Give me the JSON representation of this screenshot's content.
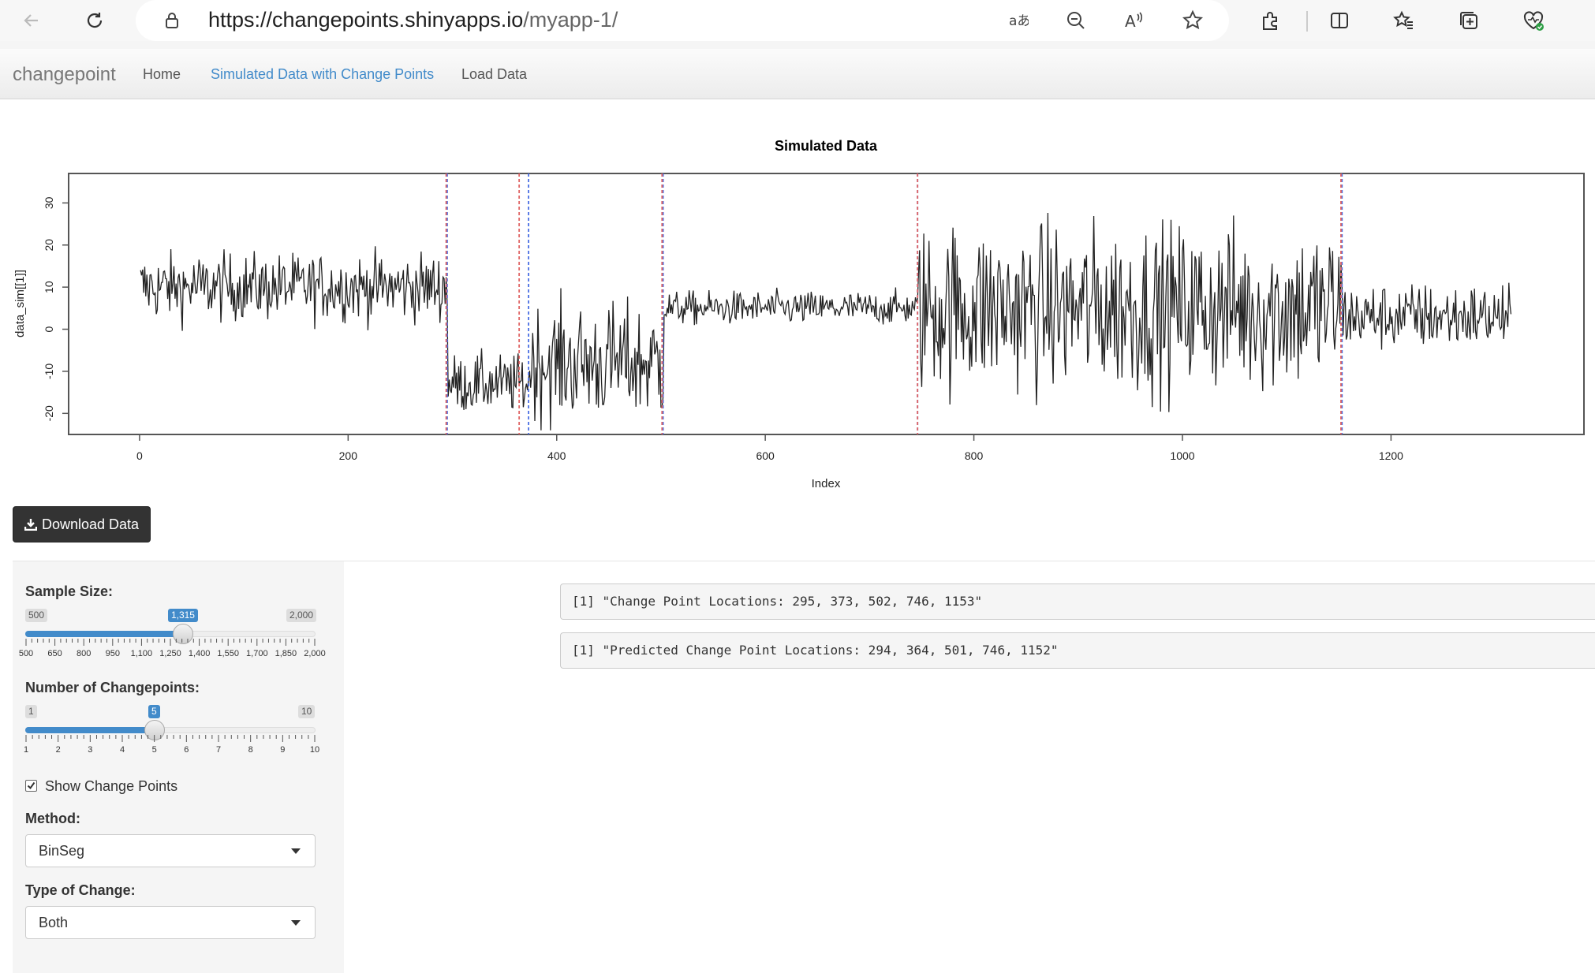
{
  "browser": {
    "url_host": "https://changepoints.shinyapps.io",
    "url_path": "/myapp-1/",
    "icons": [
      "back-arrow-icon",
      "refresh-icon",
      "lock-icon",
      "translate-icon",
      "zoom-out-icon",
      "read-aloud-icon",
      "favorite-star-icon",
      "extensions-icon",
      "split-screen-icon",
      "favorites-icon",
      "collections-icon",
      "browser-essentials-icon"
    ]
  },
  "navbar": {
    "brand": "changepoint",
    "tabs": [
      {
        "label": "Home",
        "active": false
      },
      {
        "label": "Simulated Data with Change Points",
        "active": true
      },
      {
        "label": "Load Data",
        "active": false
      }
    ],
    "active_color": "#428bca"
  },
  "chart_data": {
    "type": "line",
    "title": "Simulated Data",
    "xlabel": "Index",
    "ylabel": "data_sim[[1]]",
    "xlim": [
      0,
      1315
    ],
    "ylim": [
      -25,
      37
    ],
    "xticks": [
      0,
      200,
      400,
      600,
      800,
      1000,
      1200
    ],
    "yticks": [
      -20,
      -10,
      0,
      10,
      20,
      30
    ],
    "segments": [
      {
        "start": 1,
        "end": 295,
        "mean": 10,
        "sd": 4
      },
      {
        "start": 296,
        "end": 373,
        "mean": -13,
        "sd": 3.5
      },
      {
        "start": 374,
        "end": 502,
        "mean": -8,
        "sd": 7
      },
      {
        "start": 503,
        "end": 746,
        "mean": 5,
        "sd": 2
      },
      {
        "start": 747,
        "end": 1153,
        "mean": 5,
        "sd": 10
      },
      {
        "start": 1154,
        "end": 1315,
        "mean": 3,
        "sd": 4
      }
    ],
    "true_changepoints": [
      295,
      373,
      502,
      746,
      1153
    ],
    "predicted_changepoints": [
      294,
      364,
      501,
      746,
      1152
    ],
    "true_line_color": "#4a6fe3",
    "predicted_line_color": "#e06666",
    "grid": false
  },
  "download_button": {
    "label": "Download Data",
    "icon": "download-icon"
  },
  "controls": {
    "sample_size": {
      "label": "Sample Size:",
      "min": 500,
      "max": 2000,
      "value": 1315,
      "min_label": "500",
      "max_label": "2,000",
      "value_label": "1,315",
      "tick_labels": [
        "500",
        "650",
        "800",
        "950",
        "1,100",
        "1,250",
        "1,400",
        "1,550",
        "1,700",
        "1,850",
        "2,000"
      ]
    },
    "num_changepoints": {
      "label": "Number of Changepoints:",
      "min": 1,
      "max": 10,
      "value": 5,
      "min_label": "1",
      "max_label": "10",
      "value_label": "5",
      "tick_labels": [
        "1",
        "2",
        "3",
        "4",
        "5",
        "6",
        "7",
        "8",
        "9",
        "10"
      ]
    },
    "show_change_points": {
      "label": "Show Change Points",
      "checked": true
    },
    "method": {
      "label": "Method:",
      "value": "BinSeg"
    },
    "type_of_change": {
      "label": "Type of Change:",
      "value": "Both"
    }
  },
  "output": {
    "change_points": "[1] \"Change Point Locations: 295, 373, 502, 746, 1153\"",
    "predicted": "[1] \"Predicted Change Point Locations: 294, 364, 501, 746, 1152\""
  }
}
